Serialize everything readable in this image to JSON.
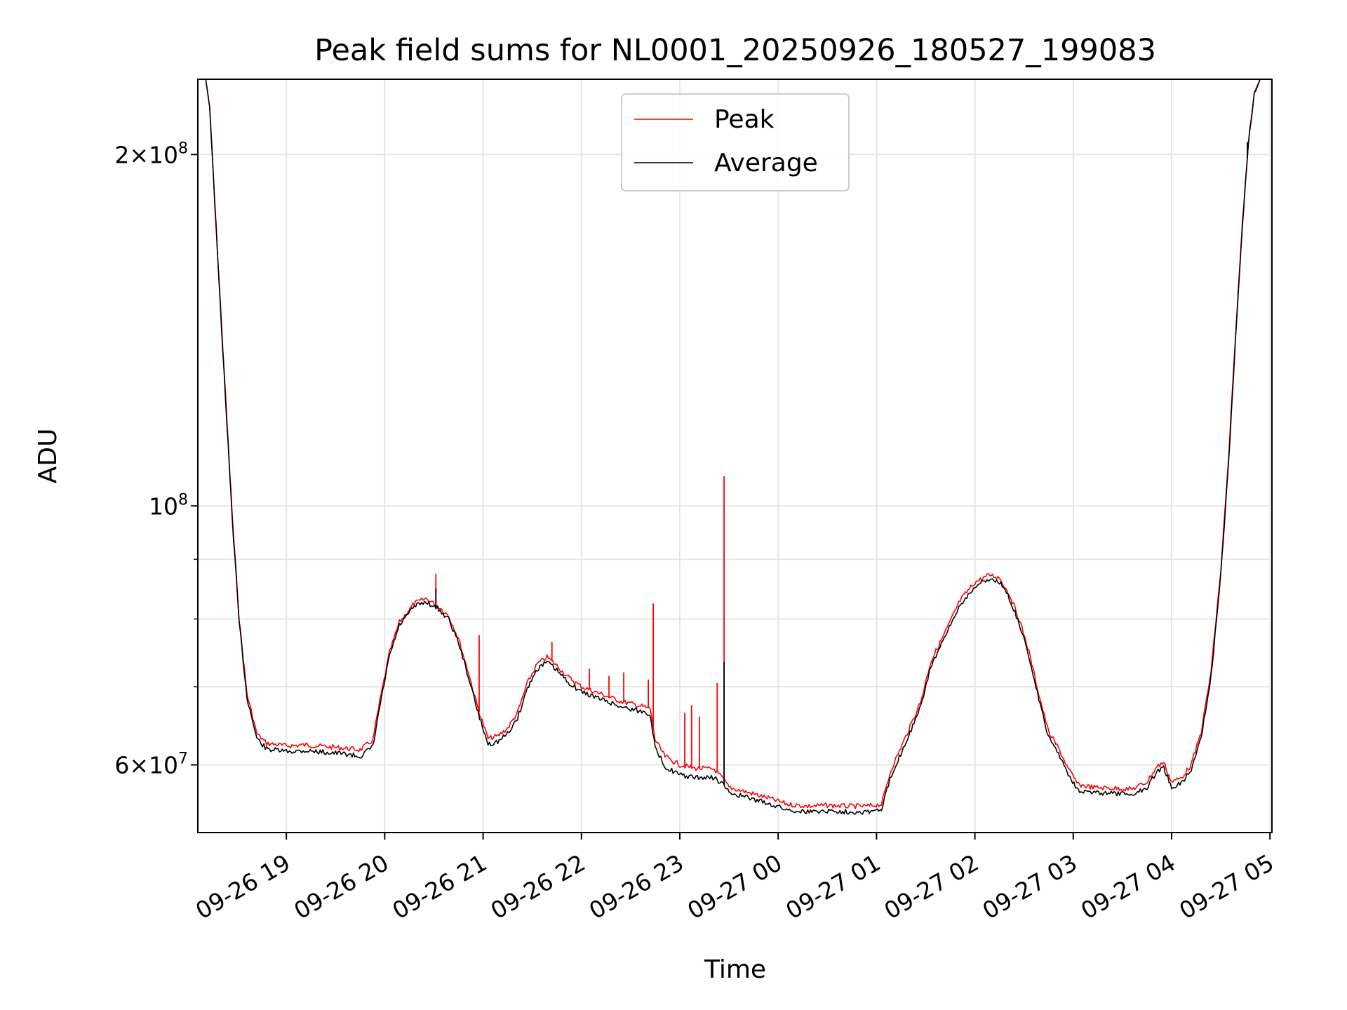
{
  "chart_data": {
    "type": "line",
    "title": "Peak field sums for NL0001_20250926_180527_199083",
    "xlabel": "Time",
    "ylabel": "ADU",
    "yscale": "log",
    "xlim": [
      18.1,
      29.02
    ],
    "ylim": [
      52500000,
      232000000
    ],
    "grid": true,
    "legend_position": "top-center",
    "x_ticks": [
      {
        "value": 19,
        "label": "09-26 19"
      },
      {
        "value": 20,
        "label": "09-26 20"
      },
      {
        "value": 21,
        "label": "09-26 21"
      },
      {
        "value": 22,
        "label": "09-26 22"
      },
      {
        "value": 23,
        "label": "09-26 23"
      },
      {
        "value": 24,
        "label": "09-27 00"
      },
      {
        "value": 25,
        "label": "09-27 01"
      },
      {
        "value": 26,
        "label": "09-27 02"
      },
      {
        "value": 27,
        "label": "09-27 03"
      },
      {
        "value": 28,
        "label": "09-27 04"
      },
      {
        "value": 29,
        "label": "09-27 05"
      }
    ],
    "y_major_ticks": [
      {
        "value": 60000000,
        "base": "6",
        "exp": "7"
      },
      {
        "value": 100000000,
        "base": "",
        "exp": "8"
      },
      {
        "value": 200000000,
        "base": "2",
        "exp": "8"
      }
    ],
    "y_minor_ticks": [
      70000000,
      80000000,
      90000000
    ],
    "x_unit_note": "hours since 2025-09-26 00:00",
    "series": [
      {
        "name": "Peak",
        "color": "#ff0000",
        "points": [
          [
            18.1,
            232000000
          ],
          [
            18.18,
            232000000
          ],
          [
            18.22,
            220000000
          ],
          [
            18.3,
            165000000
          ],
          [
            18.38,
            125000000
          ],
          [
            18.45,
            98000000
          ],
          [
            18.52,
            80000000
          ],
          [
            18.6,
            69000000
          ],
          [
            18.7,
            63800000
          ],
          [
            18.8,
            62600000
          ],
          [
            19.0,
            62300000
          ],
          [
            19.2,
            62400000
          ],
          [
            19.4,
            62200000
          ],
          [
            19.6,
            62000000
          ],
          [
            19.75,
            61800000
          ],
          [
            19.88,
            63000000
          ],
          [
            19.95,
            68000000
          ],
          [
            20.05,
            75000000
          ],
          [
            20.15,
            79500000
          ],
          [
            20.3,
            82500000
          ],
          [
            20.42,
            83300000
          ],
          [
            20.55,
            82000000
          ],
          [
            20.65,
            80500000
          ],
          [
            20.75,
            77000000
          ],
          [
            20.85,
            72000000
          ],
          [
            20.95,
            67000000
          ],
          [
            21.05,
            63200000
          ],
          [
            21.15,
            63500000
          ],
          [
            21.25,
            64500000
          ],
          [
            21.35,
            66500000
          ],
          [
            21.45,
            70500000
          ],
          [
            21.55,
            73200000
          ],
          [
            21.65,
            74200000
          ],
          [
            21.75,
            73000000
          ],
          [
            21.85,
            71500000
          ],
          [
            22.0,
            70000000
          ],
          [
            22.2,
            69000000
          ],
          [
            22.4,
            68000000
          ],
          [
            22.6,
            67400000
          ],
          [
            22.7,
            67000000
          ],
          [
            22.75,
            63000000
          ],
          [
            22.85,
            61000000
          ],
          [
            23.0,
            60000000
          ],
          [
            23.15,
            59600000
          ],
          [
            23.35,
            59500000
          ],
          [
            23.45,
            58200000
          ],
          [
            23.5,
            57400000
          ],
          [
            23.7,
            56800000
          ],
          [
            23.9,
            56200000
          ],
          [
            24.1,
            55500000
          ],
          [
            24.3,
            55300000
          ],
          [
            24.5,
            55400000
          ],
          [
            24.7,
            55300000
          ],
          [
            24.9,
            55300000
          ],
          [
            25.05,
            55500000
          ],
          [
            25.15,
            59500000
          ],
          [
            25.3,
            63500000
          ],
          [
            25.45,
            68000000
          ],
          [
            25.55,
            73500000
          ],
          [
            25.7,
            78000000
          ],
          [
            25.85,
            83000000
          ],
          [
            26.0,
            86000000
          ],
          [
            26.15,
            87300000
          ],
          [
            26.25,
            86800000
          ],
          [
            26.35,
            84000000
          ],
          [
            26.45,
            80000000
          ],
          [
            26.55,
            75000000
          ],
          [
            26.65,
            69000000
          ],
          [
            26.75,
            64000000
          ],
          [
            26.85,
            62000000
          ],
          [
            26.95,
            59500000
          ],
          [
            27.05,
            57700000
          ],
          [
            27.2,
            57400000
          ],
          [
            27.4,
            57300000
          ],
          [
            27.6,
            57200000
          ],
          [
            27.75,
            58000000
          ],
          [
            27.85,
            59800000
          ],
          [
            27.92,
            60300000
          ],
          [
            28.0,
            58000000
          ],
          [
            28.1,
            58500000
          ],
          [
            28.2,
            60000000
          ],
          [
            28.3,
            64000000
          ],
          [
            28.4,
            72000000
          ],
          [
            28.5,
            88000000
          ],
          [
            28.58,
            110000000
          ],
          [
            28.65,
            140000000
          ],
          [
            28.72,
            175000000
          ],
          [
            28.78,
            205000000
          ],
          [
            28.84,
            226000000
          ],
          [
            28.9,
            232000000
          ],
          [
            29.02,
            232000000
          ]
        ]
      },
      {
        "name": "Average",
        "color": "#000000",
        "points": [
          [
            18.1,
            232000000
          ],
          [
            18.18,
            232000000
          ],
          [
            18.22,
            220000000
          ],
          [
            18.3,
            164000000
          ],
          [
            18.38,
            124000000
          ],
          [
            18.45,
            97500000
          ],
          [
            18.52,
            79500000
          ],
          [
            18.6,
            68500000
          ],
          [
            18.7,
            63200000
          ],
          [
            18.8,
            61900000
          ],
          [
            19.0,
            61600000
          ],
          [
            19.2,
            61700000
          ],
          [
            19.4,
            61500000
          ],
          [
            19.6,
            61300000
          ],
          [
            19.75,
            61000000
          ],
          [
            19.88,
            62200000
          ],
          [
            19.95,
            67300000
          ],
          [
            20.05,
            74500000
          ],
          [
            20.15,
            79000000
          ],
          [
            20.3,
            82000000
          ],
          [
            20.42,
            82800000
          ],
          [
            20.55,
            81500000
          ],
          [
            20.65,
            80000000
          ],
          [
            20.75,
            76400000
          ],
          [
            20.85,
            71400000
          ],
          [
            20.95,
            66400000
          ],
          [
            21.05,
            62500000
          ],
          [
            21.15,
            62800000
          ],
          [
            21.25,
            63800000
          ],
          [
            21.35,
            65800000
          ],
          [
            21.45,
            69800000
          ],
          [
            21.55,
            72500000
          ],
          [
            21.65,
            73500000
          ],
          [
            21.75,
            72300000
          ],
          [
            21.85,
            70800000
          ],
          [
            22.0,
            69300000
          ],
          [
            22.2,
            68300000
          ],
          [
            22.4,
            67300000
          ],
          [
            22.6,
            66700000
          ],
          [
            22.7,
            66300000
          ],
          [
            22.75,
            62000000
          ],
          [
            22.85,
            59800000
          ],
          [
            23.0,
            58800000
          ],
          [
            23.15,
            58500000
          ],
          [
            23.35,
            58500000
          ],
          [
            23.45,
            57600000
          ],
          [
            23.5,
            56800000
          ],
          [
            23.7,
            56200000
          ],
          [
            23.9,
            55600000
          ],
          [
            24.1,
            54900000
          ],
          [
            24.3,
            54700000
          ],
          [
            24.5,
            54800000
          ],
          [
            24.7,
            54700000
          ],
          [
            24.9,
            54700000
          ],
          [
            25.05,
            54900000
          ],
          [
            25.15,
            58800000
          ],
          [
            25.3,
            62800000
          ],
          [
            25.45,
            67300000
          ],
          [
            25.55,
            72800000
          ],
          [
            25.7,
            77300000
          ],
          [
            25.85,
            82300000
          ],
          [
            26.0,
            85300000
          ],
          [
            26.15,
            86600000
          ],
          [
            26.25,
            86100000
          ],
          [
            26.35,
            83300000
          ],
          [
            26.45,
            79300000
          ],
          [
            26.55,
            74300000
          ],
          [
            26.65,
            68300000
          ],
          [
            26.75,
            63300000
          ],
          [
            26.85,
            61400000
          ],
          [
            26.95,
            58900000
          ],
          [
            27.05,
            57100000
          ],
          [
            27.2,
            56800000
          ],
          [
            27.4,
            56700000
          ],
          [
            27.6,
            56600000
          ],
          [
            27.75,
            57400000
          ],
          [
            27.85,
            59200000
          ],
          [
            27.92,
            59700000
          ],
          [
            28.0,
            57400000
          ],
          [
            28.1,
            57900000
          ],
          [
            28.2,
            59400000
          ],
          [
            28.3,
            63400000
          ],
          [
            28.4,
            71300000
          ],
          [
            28.5,
            87300000
          ],
          [
            28.58,
            109000000
          ],
          [
            28.65,
            139000000
          ],
          [
            28.72,
            174000000
          ],
          [
            28.78,
            204000000
          ],
          [
            28.84,
            225000000
          ],
          [
            28.9,
            232000000
          ],
          [
            29.02,
            232000000
          ]
        ]
      }
    ],
    "spikes": [
      {
        "series": "Peak",
        "x": 20.52,
        "y": 87500000
      },
      {
        "series": "Average",
        "x": 20.52,
        "y": 85000000
      },
      {
        "series": "Peak",
        "x": 20.96,
        "y": 77500000
      },
      {
        "series": "Peak",
        "x": 21.7,
        "y": 76500000
      },
      {
        "series": "Peak",
        "x": 22.08,
        "y": 72500000
      },
      {
        "series": "Peak",
        "x": 22.28,
        "y": 71500000
      },
      {
        "series": "Peak",
        "x": 22.43,
        "y": 72000000
      },
      {
        "series": "Peak",
        "x": 22.73,
        "y": 82500000
      },
      {
        "series": "Peak",
        "x": 22.68,
        "y": 71000000
      },
      {
        "series": "Peak",
        "x": 23.05,
        "y": 66500000
      },
      {
        "series": "Peak",
        "x": 23.12,
        "y": 67500000
      },
      {
        "series": "Peak",
        "x": 23.2,
        "y": 66000000
      },
      {
        "series": "Peak",
        "x": 23.38,
        "y": 70500000
      },
      {
        "series": "Peak",
        "x": 23.45,
        "y": 106000000
      },
      {
        "series": "Average",
        "x": 23.45,
        "y": 73500000
      },
      {
        "series": "Average",
        "x": 28.77,
        "y": 205000000
      }
    ]
  }
}
